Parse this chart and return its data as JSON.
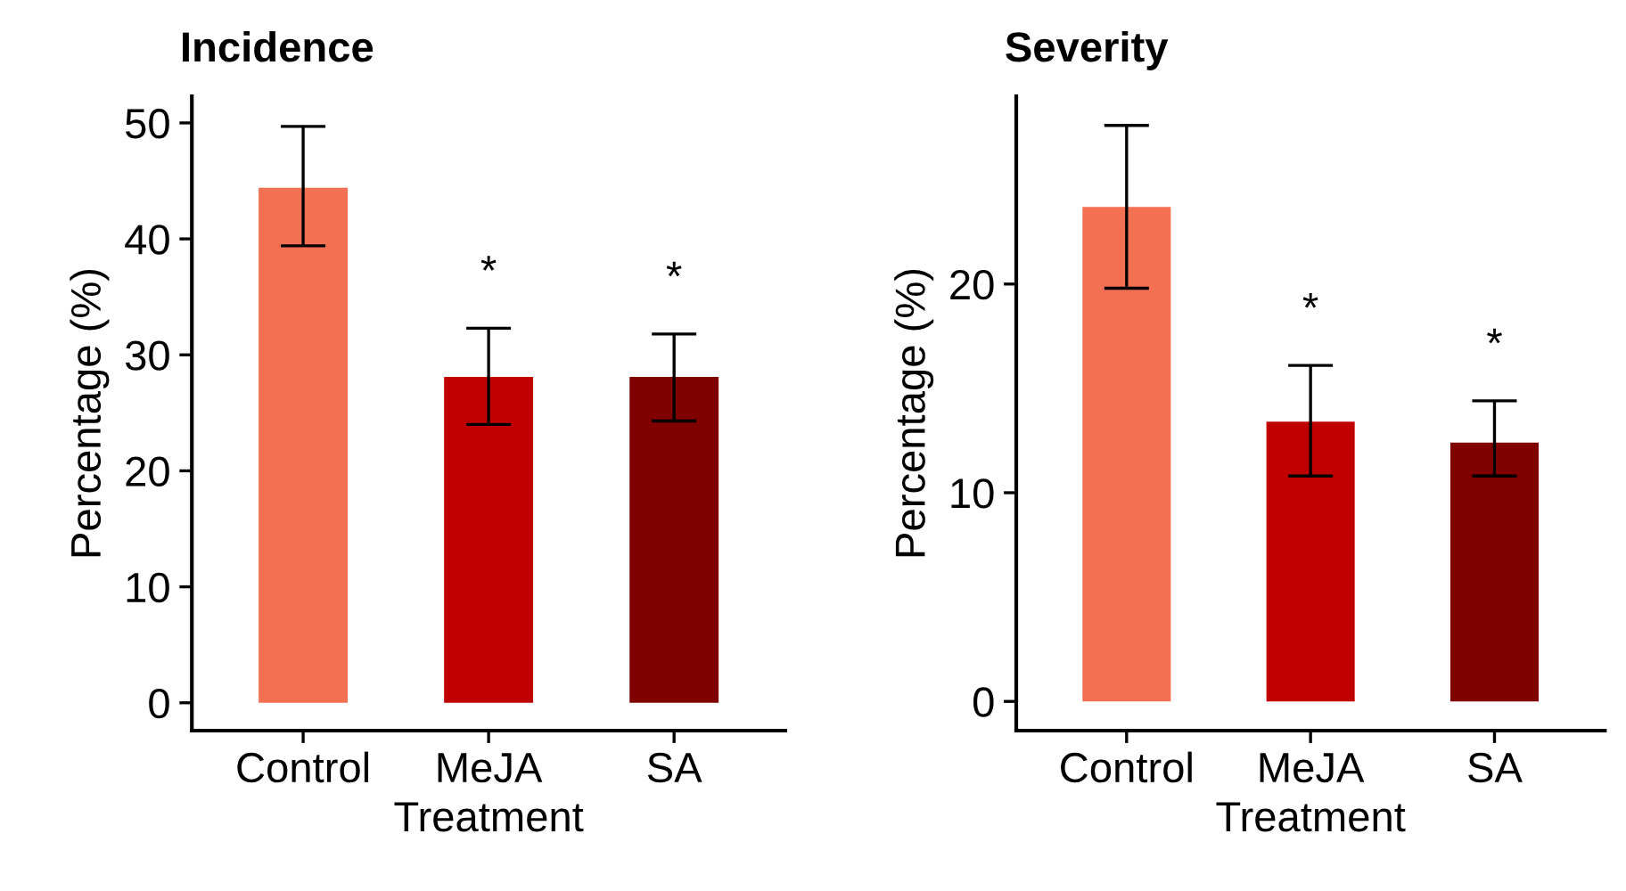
{
  "chart_data": [
    {
      "type": "bar",
      "title": "Incidence",
      "xlabel": "Treatment",
      "ylabel": "Percentage (%)",
      "categories": [
        "Control",
        "MeJA",
        "SA"
      ],
      "values": [
        44.4,
        28.1,
        28.1
      ],
      "colors": [
        "#f37053",
        "#c00000",
        "#800000"
      ],
      "errors": [
        [
          39.4,
          49.7
        ],
        [
          24.0,
          32.3
        ],
        [
          24.3,
          31.8
        ]
      ],
      "ylim": [
        -2.4,
        52.3
      ],
      "yticks": [
        0,
        10,
        20,
        30,
        40,
        50
      ],
      "grid": false,
      "legend": false,
      "annotations": [
        "*",
        "*"
      ]
    },
    {
      "type": "bar",
      "title": "Severity",
      "xlabel": "Treatment",
      "ylabel": "Percentage (%)",
      "categories": [
        "Control",
        "MeJA",
        "SA"
      ],
      "values": [
        23.7,
        13.4,
        12.4
      ],
      "colors": [
        "#f37053",
        "#c00000",
        "#800000"
      ],
      "errors": [
        [
          19.8,
          27.6
        ],
        [
          10.8,
          16.1
        ],
        [
          10.8,
          14.4
        ]
      ],
      "ylim": [
        -1.4,
        29.0
      ],
      "yticks": [
        0,
        10,
        20
      ],
      "grid": false,
      "legend": false,
      "annotations": [
        "*",
        "*"
      ]
    }
  ]
}
